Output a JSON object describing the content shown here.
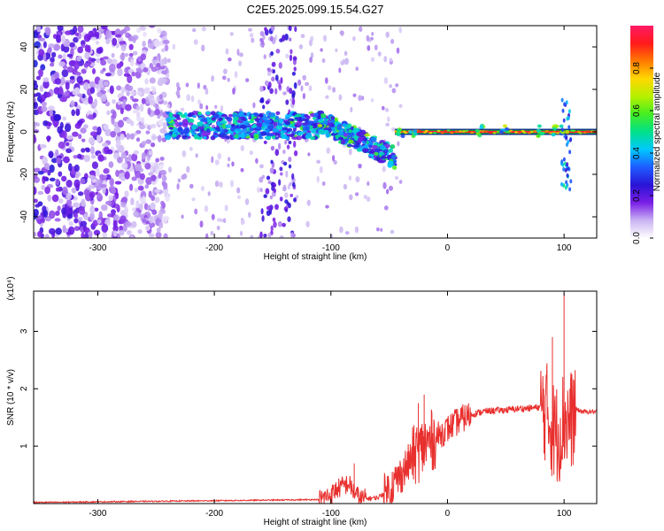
{
  "figure": {
    "title": "C2E5.2025.099.15.54.G27"
  },
  "chart_data": [
    {
      "type": "heatmap",
      "xlabel": "Height of straight line (km)",
      "ylabel": "Frequency (Hz)",
      "xlim": [
        -355,
        128
      ],
      "ylim": [
        -50,
        50
      ],
      "xticks": [
        -300,
        -200,
        -100,
        0,
        100
      ],
      "yticks": [
        -40,
        -20,
        0,
        20,
        40
      ],
      "colorbar": {
        "label": "Normalized spectral amplitude",
        "range": [
          0,
          1
        ],
        "ticks": [
          "0.0",
          "0.2",
          "0.4",
          "0.6",
          "0.8"
        ],
        "colors": [
          "#ffffff",
          "#c9b3f2",
          "#7a1ee6",
          "#2a14d6",
          "#1e5cff",
          "#00c8ff",
          "#00e08a",
          "#44ee22",
          "#b6f000",
          "#ffd800",
          "#ff7a00",
          "#ff1a1a",
          "#ff1a66"
        ]
      },
      "features": [
        {
          "name": "noise",
          "x": [
            -355,
            -240
          ],
          "freq": [
            -50,
            50
          ],
          "amplitude": 0.22
        },
        {
          "name": "band",
          "x": [
            -240,
            -110
          ],
          "freq": [
            -3,
            9
          ],
          "amplitude": 0.35
        },
        {
          "name": "descending trace",
          "x": [
            -110,
            -45
          ],
          "freq": [
            5,
            -12
          ],
          "amplitude": 0.4
        },
        {
          "name": "carrier",
          "x": [
            -45,
            128
          ],
          "freq": [
            0,
            0
          ],
          "amplitude": 0.95
        }
      ]
    },
    {
      "type": "line",
      "series": [
        {
          "color": "#e8302e"
        }
      ],
      "xlabel": "Height of straight line (km)",
      "ylabel": "SNR (10 * v/v)",
      "y_scale_label": "(x10⁴)",
      "xlim": [
        -355,
        128
      ],
      "ylim": [
        0,
        3.7
      ],
      "xticks": [
        -300,
        -200,
        -100,
        0,
        100
      ],
      "yticks": [
        1,
        2,
        3
      ],
      "trend_points": {
        "x": [
          -355,
          -300,
          -200,
          -150,
          -110,
          -100,
          -95,
          -85,
          -80,
          -75,
          -60,
          -50,
          -40,
          -30,
          -20,
          -10,
          0,
          10,
          20,
          30,
          40,
          50,
          60,
          70,
          80,
          85,
          90,
          95,
          100,
          105,
          110,
          115,
          128
        ],
        "y": [
          0.02,
          0.03,
          0.05,
          0.06,
          0.07,
          0.15,
          0.25,
          0.35,
          0.2,
          0.08,
          0.1,
          0.25,
          0.5,
          0.8,
          1.0,
          1.15,
          1.3,
          1.45,
          1.55,
          1.6,
          1.62,
          1.63,
          1.65,
          1.66,
          1.68,
          1.6,
          1.3,
          1.2,
          1.5,
          1.4,
          1.65,
          1.6,
          1.6
        ]
      },
      "spikes": [
        {
          "x": -80,
          "y": 0.7
        },
        {
          "x": -25,
          "y": 1.75
        },
        {
          "x": -20,
          "y": 1.9
        },
        {
          "x": 90,
          "y": 2.9
        },
        {
          "x": 100,
          "y": 3.65
        },
        {
          "x": 105,
          "y": 2.0
        }
      ]
    }
  ]
}
